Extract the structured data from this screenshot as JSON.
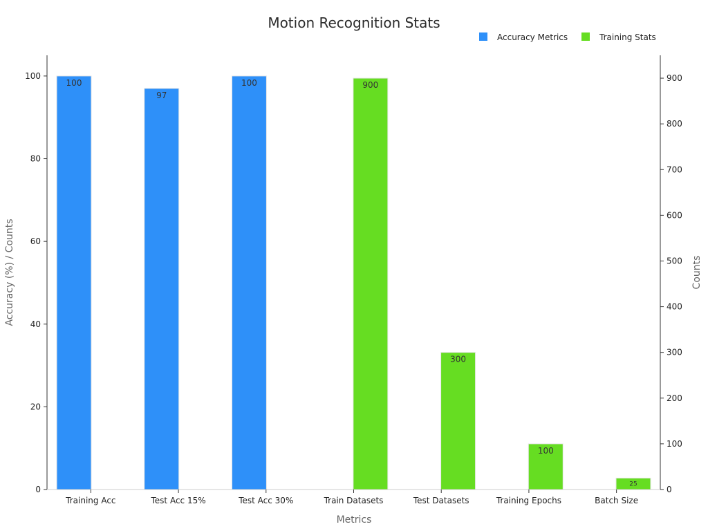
{
  "chart_data": {
    "type": "bar",
    "title": "Motion Recognition Stats",
    "xlabel": "Metrics",
    "ylabel": "Accuracy (%) / Counts",
    "y2label": "Counts",
    "categories": [
      "Training Acc",
      "Test Acc 15%",
      "Test Acc 30%",
      "Train Datasets",
      "Test Datasets",
      "Training Epochs",
      "Batch Size"
    ],
    "ylim": [
      0,
      105
    ],
    "y2lim": [
      0,
      950
    ],
    "yticks": [
      0,
      20,
      40,
      60,
      80,
      100
    ],
    "y2ticks": [
      0,
      100,
      200,
      300,
      400,
      500,
      600,
      700,
      800,
      900
    ],
    "legend_position": "top-right",
    "grid": false,
    "series": [
      {
        "name": "Accuracy Metrics",
        "axis": "left",
        "color": "#2e90f9",
        "values": [
          100,
          97,
          100,
          null,
          null,
          null,
          null
        ],
        "labels": [
          "100",
          "97",
          "100",
          "",
          "",
          "",
          ""
        ]
      },
      {
        "name": "Training Stats",
        "axis": "right",
        "color": "#66dd22",
        "values": [
          null,
          null,
          null,
          900,
          300,
          100,
          25
        ],
        "labels": [
          "",
          "",
          "",
          "900",
          "300",
          "100",
          "25"
        ]
      }
    ]
  }
}
